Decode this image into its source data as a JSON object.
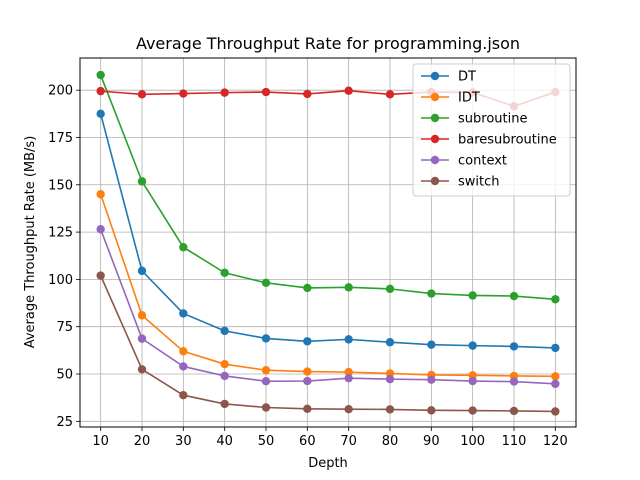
{
  "chart_data": {
    "type": "line",
    "title": "Average Throughput Rate for programming.json",
    "xlabel": "Depth",
    "ylabel": "Average Throughput Rate (MB/s)",
    "x": [
      10,
      20,
      30,
      40,
      50,
      60,
      70,
      80,
      90,
      100,
      110,
      120
    ],
    "xlim": [
      5,
      125
    ],
    "ylim": [
      22,
      217
    ],
    "yticks": [
      25,
      50,
      75,
      100,
      125,
      150,
      175,
      200
    ],
    "grid": true,
    "legend_position": "top-right",
    "series": [
      {
        "name": "DT",
        "color": "#1f77b4",
        "values": [
          187.5,
          104.5,
          82.0,
          72.8,
          68.8,
          67.3,
          68.3,
          66.8,
          65.5,
          65.0,
          64.6,
          63.8
        ]
      },
      {
        "name": "IDT",
        "color": "#ff7f0e",
        "values": [
          145.0,
          81.0,
          62.0,
          55.2,
          52.0,
          51.3,
          51.0,
          50.3,
          49.5,
          49.3,
          49.0,
          48.8
        ]
      },
      {
        "name": "subroutine",
        "color": "#2ca02c",
        "values": [
          208.0,
          151.8,
          117.0,
          103.5,
          98.2,
          95.5,
          95.8,
          95.0,
          92.5,
          91.5,
          91.2,
          89.5
        ]
      },
      {
        "name": "baresubroutine",
        "color": "#d62728",
        "values": [
          199.5,
          197.8,
          198.2,
          198.7,
          199.0,
          198.0,
          199.7,
          197.8,
          199.0,
          198.8,
          191.5,
          199.0
        ]
      },
      {
        "name": "context",
        "color": "#9467bd",
        "values": [
          126.5,
          68.7,
          54.0,
          49.0,
          46.2,
          46.3,
          47.8,
          47.3,
          47.0,
          46.3,
          46.0,
          44.8
        ]
      },
      {
        "name": "switch",
        "color": "#8c564b",
        "values": [
          102.0,
          52.5,
          38.8,
          34.2,
          32.3,
          31.6,
          31.4,
          31.3,
          30.8,
          30.7,
          30.5,
          30.2
        ]
      }
    ]
  }
}
